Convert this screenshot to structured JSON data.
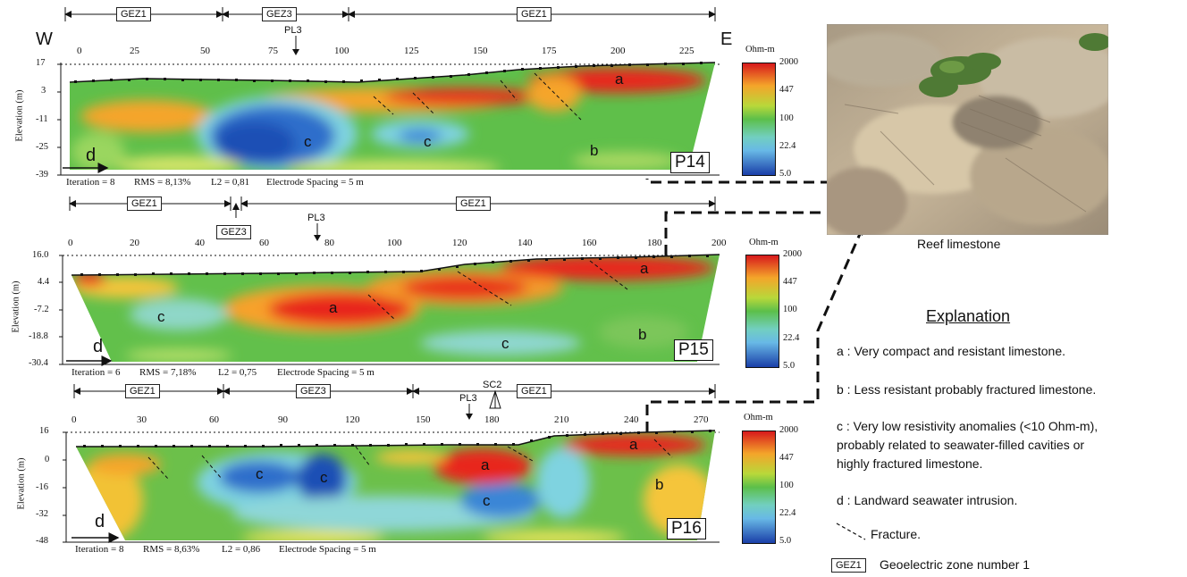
{
  "directions": {
    "west": "W",
    "east": "E"
  },
  "sections": [
    {
      "id": "P14",
      "zones": [
        "GEZ1",
        "GEZ3",
        "GEZ1"
      ],
      "x_ticks": [
        "0",
        "25",
        "50",
        "75",
        "100",
        "125",
        "150",
        "175",
        "200",
        "225"
      ],
      "y_ticks": [
        "17",
        "3",
        "-11",
        "-25",
        "-39"
      ],
      "y_label": "Elevation (m)",
      "marker": "PL3",
      "stats": {
        "iteration": "Iteration = 8",
        "rms": "RMS = 8,13%",
        "l2": "L2 = 0,81",
        "spacing": "Electrode Spacing = 5 m"
      },
      "labels": [
        "a",
        "b",
        "c",
        "c",
        "d"
      ],
      "colorbar": {
        "unit": "Ohm-m",
        "ticks": [
          "2000",
          "447",
          "100",
          "22.4",
          "5.0"
        ]
      }
    },
    {
      "id": "P15",
      "zones": [
        "GEZ1",
        "GEZ3",
        "GEZ1"
      ],
      "x_ticks": [
        "0",
        "20",
        "40",
        "60",
        "80",
        "100",
        "120",
        "140",
        "160",
        "180",
        "200"
      ],
      "y_ticks": [
        "16.0",
        "4.4",
        "-7.2",
        "-18.8",
        "-30.4"
      ],
      "y_label": "Elevation (m)",
      "marker": "PL3",
      "stats": {
        "iteration": "Iteration = 6",
        "rms": "RMS = 7,18%",
        "l2": "L2 = 0,75",
        "spacing": "Electrode Spacing = 5 m"
      },
      "labels": [
        "a",
        "a",
        "b",
        "c",
        "c",
        "d"
      ],
      "colorbar": {
        "unit": "Ohm-m",
        "ticks": [
          "2000",
          "447",
          "100",
          "22.4",
          "5.0"
        ]
      }
    },
    {
      "id": "P16",
      "zones": [
        "GEZ1",
        "GEZ3",
        "GEZ1"
      ],
      "x_ticks": [
        "0",
        "30",
        "60",
        "90",
        "120",
        "150",
        "180",
        "210",
        "240",
        "270"
      ],
      "y_ticks": [
        "16",
        "0",
        "-16",
        "-32",
        "-48"
      ],
      "y_label": "Elevation (m)",
      "marker": "PL3",
      "marker2": "SC2",
      "stats": {
        "iteration": "Iteration = 8",
        "rms": "RMS = 8,63%",
        "l2": "L2 = 0,86",
        "spacing": "Electrode Spacing = 5 m"
      },
      "labels": [
        "a",
        "a",
        "b",
        "c",
        "c",
        "c",
        "d"
      ],
      "colorbar": {
        "unit": "Ohm-m",
        "ticks": [
          "2000",
          "447",
          "100",
          "22.4",
          "5.0"
        ]
      }
    }
  ],
  "photo": {
    "caption": "Reef limestone"
  },
  "explanation": {
    "title": "Explanation",
    "a": "a : Very compact and resistant limestone.",
    "b": "b : Less resistant probably fractured limestone.",
    "c1": "c : Very low resistivity anomalies (<10 Ohm-m),",
    "c2": "probably related to seawater-filled cavities or",
    "c3": "highly fractured limestone.",
    "d": "d : Landward seawater intrusion.",
    "fracture": "Fracture.",
    "legend_box": "GEZ1",
    "legend_text": "Geoelectric zone number 1"
  },
  "colors": {
    "high": "#e8281e",
    "mid_high": "#f7b52c",
    "mid": "#6cc04a",
    "mid_low": "#7fd3e0",
    "low": "#1d4fb5"
  }
}
